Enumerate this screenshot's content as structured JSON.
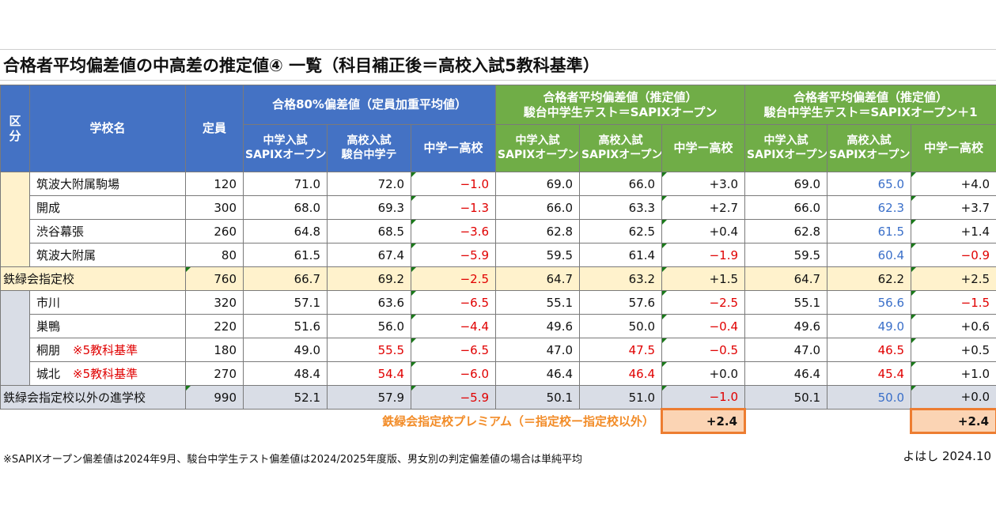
{
  "title": "合格者平均偏差値の中高差の推定値④ 一覧（科目補正後＝高校入試5教科基準）",
  "headers": {
    "kubun": "区\n分",
    "school": "学校名",
    "capacity": "定員",
    "group1": "合格80%偏差値（定員加重平均値）",
    "group2_line1": "合格者平均偏差値（推定値）",
    "group2_line2": "駿台中学生テスト＝SAPIXオープン",
    "group3_line1": "合格者平均偏差値（推定値）",
    "group3_line2": "駿台中学生テスト＝SAPIXオープン＋1",
    "g1_c1_l1": "中学入試",
    "g1_c1_l2": "SAPIXオープン",
    "g1_c2_l1": "高校入試",
    "g1_c2_l2": "駿台中学テ",
    "g1_c3": "中学ー高校",
    "g2_c1_l1": "中学入試",
    "g2_c1_l2": "SAPIXオープン",
    "g2_c2_l1": "高校入試",
    "g2_c2_l2": "SAPIXオープン",
    "g2_c3": "中学ー高校",
    "g3_c1_l1": "中学入試",
    "g3_c1_l2": "SAPIXオープン",
    "g3_c2_l1": "高校入試",
    "g3_c2_l2": "SAPIXオープン",
    "g3_c3": "中学ー高校"
  },
  "rows": [
    {
      "name": "筑波大附属駒場",
      "cap": "120",
      "a1": "71.0",
      "a2": "72.0",
      "a3": "−1.0",
      "b1": "69.0",
      "b2": "66.0",
      "b3": "+3.0",
      "c1": "69.0",
      "c2": "65.0",
      "c3": "+4.0"
    },
    {
      "name": "開成",
      "cap": "300",
      "a1": "68.0",
      "a2": "69.3",
      "a3": "−1.3",
      "b1": "66.0",
      "b2": "63.3",
      "b3": "+2.7",
      "c1": "66.0",
      "c2": "62.3",
      "c3": "+3.7"
    },
    {
      "name": "渋谷幕張",
      "cap": "260",
      "a1": "64.8",
      "a2": "68.5",
      "a3": "−3.6",
      "b1": "62.8",
      "b2": "62.5",
      "b3": "+0.4",
      "c1": "62.8",
      "c2": "61.5",
      "c3": "+1.4"
    },
    {
      "name": "筑波大附属",
      "cap": "80",
      "a1": "61.5",
      "a2": "67.4",
      "a3": "−5.9",
      "b1": "59.5",
      "b2": "61.4",
      "b3": "−1.9",
      "c1": "59.5",
      "c2": "60.4",
      "c3": "−0.9"
    },
    {
      "name": "鉄緑会指定校",
      "cap": "760",
      "a1": "66.7",
      "a2": "69.2",
      "a3": "−2.5",
      "b1": "64.7",
      "b2": "63.2",
      "b3": "+1.5",
      "c1": "64.7",
      "c2": "62.2",
      "c3": "+2.5"
    },
    {
      "name": "市川",
      "cap": "320",
      "a1": "57.1",
      "a2": "63.6",
      "a3": "−6.5",
      "b1": "55.1",
      "b2": "57.6",
      "b3": "−2.5",
      "c1": "55.1",
      "c2": "56.6",
      "c3": "−1.5"
    },
    {
      "name": "巣鴨",
      "cap": "220",
      "a1": "51.6",
      "a2": "56.0",
      "a3": "−4.4",
      "b1": "49.6",
      "b2": "50.0",
      "b3": "−0.4",
      "c1": "49.6",
      "c2": "49.0",
      "c3": "+0.6"
    },
    {
      "name": "桐朋",
      "note": "※5教科基準",
      "cap": "180",
      "a1": "49.0",
      "a2": "55.5",
      "a3": "−6.5",
      "b1": "47.0",
      "b2": "47.5",
      "b3": "−0.5",
      "c1": "47.0",
      "c2": "46.5",
      "c3": "+0.5"
    },
    {
      "name": "城北",
      "note": "※5教科基準",
      "cap": "270",
      "a1": "48.4",
      "a2": "54.4",
      "a3": "−6.0",
      "b1": "46.4",
      "b2": "46.4",
      "b3": "+0.0",
      "c1": "46.4",
      "c2": "45.4",
      "c3": "+1.0"
    },
    {
      "name": "鉄緑会指定校以外の進学校",
      "cap": "990",
      "a1": "52.1",
      "a2": "57.9",
      "a3": "−5.9",
      "b1": "50.1",
      "b2": "51.0",
      "b3": "−1.0",
      "c1": "50.1",
      "c2": "50.0",
      "c3": "+0.0"
    }
  ],
  "premium": {
    "label": "鉄緑会指定校プレミアム（＝指定校ー指定校以外）",
    "b3": "+2.4",
    "c3": "+2.4"
  },
  "footnote": "※SAPIXオープン偏差値は2024年9月、駿台中学生テスト偏差値は2024/2025年度版、男女別の判定偏差値の場合は単純平均",
  "author": "よはし 2024.10",
  "colors": {
    "blue_header": "#4472c4",
    "green_header": "#70ad47",
    "designated_bg": "#fff2cc",
    "other_bg": "#d9dde6",
    "negative": "#e00000",
    "blue_value": "#3a6fc9",
    "premium": "#ed7d31"
  }
}
